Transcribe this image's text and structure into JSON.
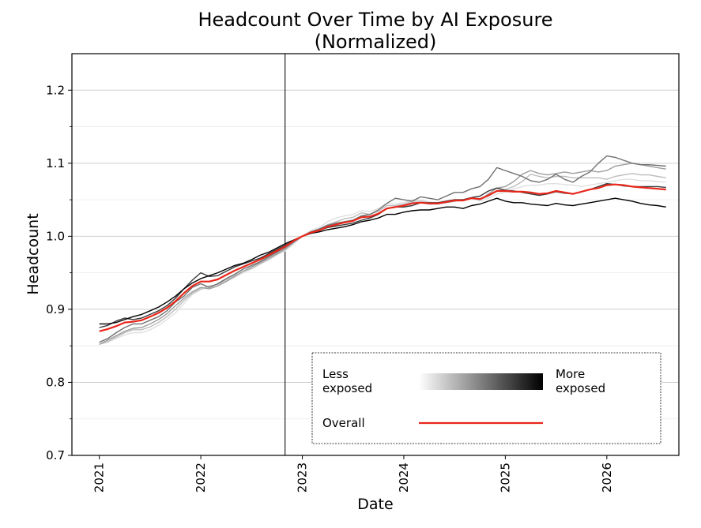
{
  "chart_data": {
    "type": "line",
    "title": "Headcount Over Time by AI Exposure",
    "subtitle": "(Normalized)",
    "xlabel": "Date",
    "ylabel": "Headcount",
    "xlim": [
      2020.73,
      2026.71
    ],
    "ylim": [
      0.7,
      1.25
    ],
    "x_ticks": [
      {
        "value": 2021,
        "label": "2021"
      },
      {
        "value": 2022,
        "label": "2022"
      },
      {
        "value": 2023,
        "label": "2023"
      },
      {
        "value": 2024,
        "label": "2024"
      },
      {
        "value": 2025,
        "label": "2025"
      },
      {
        "value": 2026,
        "label": "2026"
      }
    ],
    "y_ticks": [
      {
        "value": 0.7,
        "label": "0.7"
      },
      {
        "value": 0.8,
        "label": "0.8"
      },
      {
        "value": 0.9,
        "label": "0.9"
      },
      {
        "value": 1.0,
        "label": "1.0"
      },
      {
        "value": 1.1,
        "label": "1.1"
      },
      {
        "value": 1.2,
        "label": "1.2"
      }
    ],
    "grid": "horizontal",
    "reference_line": {
      "axis": "x",
      "value": 2022.83
    },
    "legend": {
      "placement": "bottom-right",
      "less_label": [
        "Less",
        "exposed"
      ],
      "more_label": [
        "More",
        "exposed"
      ],
      "overall_label": "Overall",
      "gradient": [
        "#ffffff",
        "#000000"
      ]
    },
    "x_start": 2021.0,
    "x_step": 0.08333,
    "series": [
      {
        "color": "#e0e0e0",
        "values": [
          0.852,
          0.855,
          0.86,
          0.865,
          0.868,
          0.868,
          0.872,
          0.878,
          0.886,
          0.895,
          0.908,
          0.92,
          0.927,
          0.93,
          0.932,
          0.938,
          0.944,
          0.95,
          0.955,
          0.962,
          0.968,
          0.975,
          0.98,
          0.99,
          1.0,
          1.008,
          1.012,
          1.02,
          1.025,
          1.028,
          1.03,
          1.035,
          1.034,
          1.038,
          1.045,
          1.044,
          1.046,
          1.05,
          1.05,
          1.047,
          1.046,
          1.048,
          1.05,
          1.05,
          1.052,
          1.048,
          1.052,
          1.058,
          1.06,
          1.065,
          1.068,
          1.07,
          1.07,
          1.072,
          1.072,
          1.071,
          1.07,
          1.068,
          1.07,
          1.072,
          1.074,
          1.076,
          1.078,
          1.078,
          1.076,
          1.076,
          1.075,
          1.074
        ]
      },
      {
        "color": "#bdbdbd",
        "values": [
          0.852,
          0.856,
          0.862,
          0.868,
          0.872,
          0.872,
          0.876,
          0.882,
          0.89,
          0.9,
          0.912,
          0.922,
          0.928,
          0.932,
          0.934,
          0.94,
          0.946,
          0.952,
          0.956,
          0.962,
          0.968,
          0.975,
          0.982,
          0.991,
          1.0,
          1.006,
          1.01,
          1.016,
          1.02,
          1.024,
          1.026,
          1.032,
          1.03,
          1.034,
          1.042,
          1.042,
          1.044,
          1.048,
          1.048,
          1.046,
          1.046,
          1.048,
          1.05,
          1.05,
          1.052,
          1.05,
          1.055,
          1.062,
          1.064,
          1.068,
          1.075,
          1.085,
          1.082,
          1.08,
          1.082,
          1.082,
          1.08,
          1.08,
          1.08,
          1.08,
          1.078,
          1.082,
          1.084,
          1.086,
          1.084,
          1.084,
          1.082,
          1.08
        ]
      },
      {
        "color": "#9e9e9e",
        "values": [
          0.852,
          0.858,
          0.864,
          0.87,
          0.874,
          0.875,
          0.88,
          0.886,
          0.894,
          0.905,
          0.915,
          0.924,
          0.93,
          0.928,
          0.932,
          0.938,
          0.945,
          0.952,
          0.958,
          0.964,
          0.97,
          0.976,
          0.983,
          0.992,
          1.0,
          1.005,
          1.008,
          1.014,
          1.018,
          1.02,
          1.022,
          1.028,
          1.026,
          1.03,
          1.038,
          1.04,
          1.042,
          1.046,
          1.046,
          1.044,
          1.044,
          1.046,
          1.048,
          1.05,
          1.052,
          1.05,
          1.058,
          1.066,
          1.068,
          1.075,
          1.085,
          1.09,
          1.086,
          1.084,
          1.086,
          1.088,
          1.086,
          1.088,
          1.09,
          1.088,
          1.09,
          1.096,
          1.098,
          1.1,
          1.098,
          1.096,
          1.094,
          1.092
        ]
      },
      {
        "color": "#707070",
        "values": [
          0.855,
          0.86,
          0.868,
          0.875,
          0.88,
          0.88,
          0.885,
          0.89,
          0.898,
          0.91,
          0.918,
          0.93,
          0.935,
          0.93,
          0.935,
          0.942,
          0.948,
          0.955,
          0.96,
          0.965,
          0.972,
          0.978,
          0.985,
          0.993,
          1.0,
          1.006,
          1.01,
          1.015,
          1.018,
          1.02,
          1.022,
          1.028,
          1.03,
          1.036,
          1.045,
          1.052,
          1.05,
          1.048,
          1.054,
          1.052,
          1.05,
          1.055,
          1.06,
          1.06,
          1.065,
          1.068,
          1.078,
          1.094,
          1.09,
          1.086,
          1.082,
          1.076,
          1.074,
          1.078,
          1.085,
          1.078,
          1.074,
          1.082,
          1.088,
          1.1,
          1.11,
          1.108,
          1.104,
          1.1,
          1.098,
          1.098,
          1.097,
          1.096
        ]
      },
      {
        "color": "#3a3a3a",
        "values": [
          0.875,
          0.878,
          0.884,
          0.888,
          0.886,
          0.888,
          0.893,
          0.898,
          0.905,
          0.915,
          0.928,
          0.94,
          0.95,
          0.945,
          0.946,
          0.952,
          0.958,
          0.962,
          0.966,
          0.97,
          0.976,
          0.982,
          0.988,
          0.994,
          1.0,
          1.004,
          1.008,
          1.012,
          1.014,
          1.016,
          1.018,
          1.022,
          1.025,
          1.03,
          1.038,
          1.04,
          1.04,
          1.042,
          1.046,
          1.046,
          1.046,
          1.048,
          1.05,
          1.05,
          1.053,
          1.055,
          1.062,
          1.066,
          1.063,
          1.062,
          1.06,
          1.058,
          1.056,
          1.058,
          1.061,
          1.059,
          1.058,
          1.061,
          1.064,
          1.068,
          1.072,
          1.071,
          1.069,
          1.068,
          1.068,
          1.068,
          1.068,
          1.067
        ]
      },
      {
        "color": "#000000",
        "values": [
          0.88,
          0.88,
          0.882,
          0.886,
          0.89,
          0.893,
          0.898,
          0.903,
          0.91,
          0.918,
          0.928,
          0.936,
          0.942,
          0.946,
          0.95,
          0.955,
          0.96,
          0.963,
          0.968,
          0.974,
          0.978,
          0.984,
          0.99,
          0.995,
          1.0,
          1.004,
          1.006,
          1.009,
          1.011,
          1.013,
          1.016,
          1.02,
          1.022,
          1.025,
          1.03,
          1.03,
          1.033,
          1.035,
          1.036,
          1.036,
          1.038,
          1.04,
          1.04,
          1.038,
          1.042,
          1.044,
          1.048,
          1.052,
          1.048,
          1.046,
          1.046,
          1.044,
          1.043,
          1.042,
          1.045,
          1.043,
          1.042,
          1.044,
          1.046,
          1.048,
          1.05,
          1.052,
          1.05,
          1.048,
          1.045,
          1.043,
          1.042,
          1.04
        ]
      },
      {
        "color": "#e8261a",
        "overall": true,
        "values": [
          0.87,
          0.873,
          0.877,
          0.882,
          0.883,
          0.885,
          0.89,
          0.895,
          0.902,
          0.911,
          0.922,
          0.932,
          0.938,
          0.938,
          0.941,
          0.947,
          0.953,
          0.958,
          0.963,
          0.968,
          0.974,
          0.98,
          0.986,
          0.994,
          1.0,
          1.005,
          1.008,
          1.013,
          1.016,
          1.019,
          1.021,
          1.026,
          1.027,
          1.031,
          1.038,
          1.04,
          1.042,
          1.045,
          1.046,
          1.045,
          1.045,
          1.047,
          1.049,
          1.049,
          1.052,
          1.051,
          1.056,
          1.062,
          1.062,
          1.061,
          1.061,
          1.06,
          1.058,
          1.059,
          1.062,
          1.06,
          1.058,
          1.061,
          1.064,
          1.066,
          1.07,
          1.071,
          1.07,
          1.068,
          1.067,
          1.066,
          1.065,
          1.064
        ]
      }
    ]
  }
}
